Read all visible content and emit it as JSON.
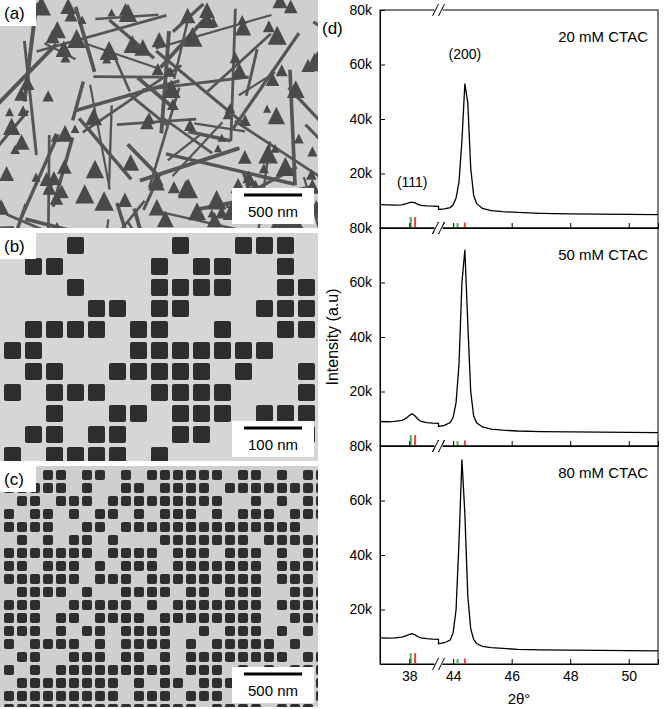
{
  "images": [
    {
      "label": "(a)",
      "scale_bar": "500 nm"
    },
    {
      "label": "(b)",
      "scale_bar": "100 nm"
    },
    {
      "label": "(c)",
      "scale_bar": "500 nm"
    }
  ],
  "chart_data": [
    {
      "type": "line",
      "panel": "(d)",
      "title": "20 mM CTAC",
      "annotations": [
        {
          "text": "(111)",
          "x": 38.1,
          "y": 15000
        },
        {
          "text": "(200)",
          "x": 44.4,
          "y": 62000
        }
      ],
      "x": [
        37,
        37.25,
        37.5,
        37.75,
        37.9,
        38,
        38.1,
        38.2,
        38.3,
        38.4,
        38.6,
        38.8,
        39,
        43.5,
        43.7,
        43.9,
        44,
        44.1,
        44.2,
        44.3,
        44.4,
        44.5,
        44.6,
        44.7,
        44.8,
        45,
        45.3,
        45.7,
        46.2,
        47,
        48,
        49,
        50,
        51
      ],
      "values": [
        8600,
        8500,
        8400,
        8500,
        8900,
        9300,
        9500,
        9200,
        8700,
        8300,
        8100,
        8000,
        7900,
        6800,
        7000,
        7500,
        8500,
        11000,
        17000,
        32000,
        53000,
        46000,
        22000,
        12000,
        9000,
        7200,
        6400,
        6000,
        5700,
        5400,
        5200,
        5100,
        5000,
        4900
      ],
      "color": "#000000",
      "reference_peaks": [
        {
          "color": "#4caf50",
          "x": [
            38.05,
            44.15
          ],
          "values": [
            4000,
            1800
          ]
        },
        {
          "color": "#e8433a",
          "x": [
            38.2,
            44.4
          ],
          "values": [
            4000,
            2000
          ]
        }
      ],
      "xlim": [
        37,
        51
      ],
      "x_break": [
        39,
        43.5
      ],
      "xticks": [
        38,
        44,
        46,
        48,
        50
      ],
      "ylim": [
        0,
        80000
      ],
      "yticks": [
        {
          "value": 20000,
          "label": "20k"
        },
        {
          "value": 40000,
          "label": "40k"
        },
        {
          "value": 60000,
          "label": "60k"
        },
        {
          "value": 80000,
          "label": "80k"
        }
      ],
      "tick_labels": "y"
    },
    {
      "type": "line",
      "title": "50 mM CTAC",
      "ylabel": "Intensity (a.u)",
      "x": [
        37,
        37.25,
        37.5,
        37.75,
        37.9,
        38,
        38.1,
        38.2,
        38.3,
        38.4,
        38.6,
        38.8,
        39,
        43.5,
        43.7,
        43.9,
        44,
        44.1,
        44.2,
        44.3,
        44.4,
        44.5,
        44.6,
        44.7,
        44.8,
        45,
        45.3,
        45.7,
        46.2,
        47,
        48,
        49,
        50,
        51
      ],
      "values": [
        9000,
        8900,
        9000,
        9400,
        10200,
        11200,
        11800,
        11000,
        9800,
        9000,
        8600,
        8400,
        8300,
        7200,
        7600,
        8600,
        10500,
        16000,
        30000,
        60000,
        72000,
        45000,
        20000,
        11000,
        8500,
        7000,
        6200,
        5800,
        5500,
        5300,
        5200,
        5100,
        5000,
        4900
      ],
      "color": "#000000",
      "reference_peaks": [
        {
          "color": "#4caf50",
          "x": [
            38.05,
            44.15
          ],
          "values": [
            4000,
            1800
          ]
        },
        {
          "color": "#e8433a",
          "x": [
            38.2,
            44.4
          ],
          "values": [
            4000,
            2000
          ]
        }
      ],
      "xlim": [
        37,
        51
      ],
      "x_break": [
        39,
        43.5
      ],
      "xticks": [
        38,
        44,
        46,
        48,
        50
      ],
      "ylim": [
        0,
        80000
      ],
      "yticks": [
        {
          "value": 20000,
          "label": "20k"
        },
        {
          "value": 40000,
          "label": "40k"
        },
        {
          "value": 60000,
          "label": "60k"
        },
        {
          "value": 80000,
          "label": "80k"
        }
      ],
      "tick_labels": "y"
    },
    {
      "type": "line",
      "title": "80 mM CTAC",
      "xlabel": "2θ°",
      "x": [
        37,
        37.25,
        37.5,
        37.75,
        37.9,
        38,
        38.1,
        38.2,
        38.3,
        38.4,
        38.6,
        38.8,
        39,
        43.5,
        43.7,
        43.9,
        44,
        44.1,
        44.2,
        44.3,
        44.4,
        44.5,
        44.6,
        44.7,
        44.8,
        45,
        45.3,
        45.7,
        46.2,
        47,
        48,
        49,
        50,
        51
      ],
      "values": [
        9600,
        9500,
        9600,
        9900,
        10400,
        10900,
        11100,
        10700,
        10000,
        9600,
        9300,
        9100,
        9000,
        7400,
        7800,
        8800,
        11500,
        20000,
        45000,
        75000,
        55000,
        25000,
        13000,
        9000,
        7500,
        6500,
        6000,
        5700,
        5400,
        5200,
        5100,
        5000,
        4900,
        4800
      ],
      "color": "#000000",
      "reference_peaks": [
        {
          "color": "#4caf50",
          "x": [
            38.05,
            44.15
          ],
          "values": [
            4000,
            1800
          ]
        },
        {
          "color": "#e8433a",
          "x": [
            38.2,
            44.4
          ],
          "values": [
            4000,
            2000
          ]
        }
      ],
      "xlim": [
        37,
        51
      ],
      "x_break": [
        39,
        43.5
      ],
      "xticks": [
        38,
        44,
        46,
        48,
        50
      ],
      "ylim": [
        0,
        80000
      ],
      "yticks": [
        {
          "value": 20000,
          "label": "20k"
        },
        {
          "value": 40000,
          "label": "40k"
        },
        {
          "value": 60000,
          "label": "60k"
        },
        {
          "value": 80000,
          "label": "80k"
        }
      ],
      "tick_labels": true
    }
  ]
}
